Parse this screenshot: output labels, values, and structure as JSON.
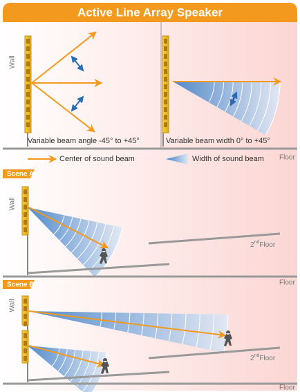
{
  "header": {
    "title": "Active Line Array Speaker"
  },
  "top_panel": {
    "wall_label": "Wall",
    "left_caption": "Variable beam angle -45° to +45°",
    "right_caption": "Variable beam width 0° to +45°",
    "floor_label": "Floor"
  },
  "legend": {
    "items": [
      {
        "label": "Center of sound beam"
      },
      {
        "label": "Width of sound beam"
      }
    ]
  },
  "scenes": [
    {
      "label": "Scene A",
      "wall_label": "Wall",
      "upper_floor": {
        "ordinal": "2",
        "suffix": "nd",
        "label": "Floor"
      },
      "floor_label": "Floor"
    },
    {
      "label": "Scene B",
      "wall_label": "Wall",
      "upper_floor": {
        "ordinal": "2",
        "suffix": "nd",
        "label": "Floor"
      },
      "floor_label": "Floor"
    }
  ]
}
